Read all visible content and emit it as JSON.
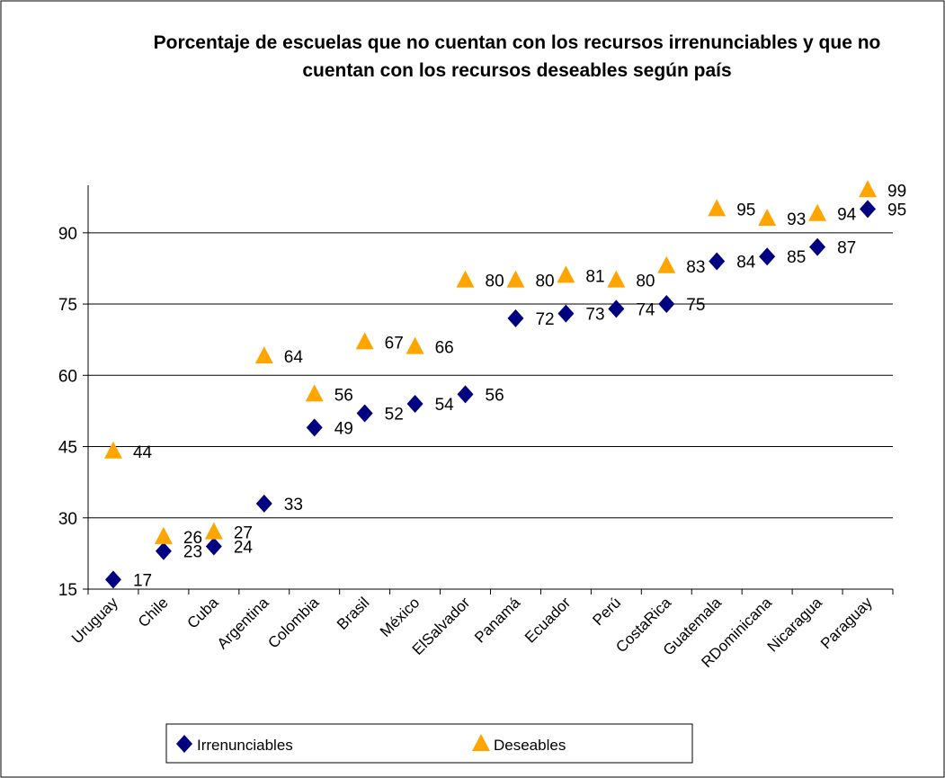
{
  "chart_data": {
    "type": "scatter",
    "title": "Porcentaje de escuelas que no cuentan con los recursos irrenunciables y que no cuentan con los recursos deseables según país",
    "categories": [
      "Uruguay",
      "Chile",
      "Cuba",
      "Argentina",
      "Colombia",
      "Brasil",
      "México",
      "ElSalvador",
      "Panamá",
      "Ecuador",
      "Perú",
      "CostaRica",
      "Guatemala",
      "RDominicana",
      "Nicaragua",
      "Paraguay"
    ],
    "series": [
      {
        "name": "Irrenunciables",
        "color": "#000080",
        "marker": "diamond",
        "values": [
          17,
          23,
          24,
          33,
          49,
          52,
          54,
          56,
          72,
          73,
          74,
          75,
          84,
          85,
          87,
          95
        ]
      },
      {
        "name": "Deseables",
        "color": "#ffa500",
        "marker": "triangle",
        "values": [
          44,
          26,
          27,
          64,
          56,
          67,
          66,
          80,
          80,
          81,
          80,
          83,
          95,
          93,
          94,
          99
        ]
      }
    ],
    "ylim": [
      15,
      100
    ],
    "yticks": [
      15,
      30,
      45,
      60,
      75,
      90
    ],
    "grid": true,
    "legend": "bottom"
  }
}
